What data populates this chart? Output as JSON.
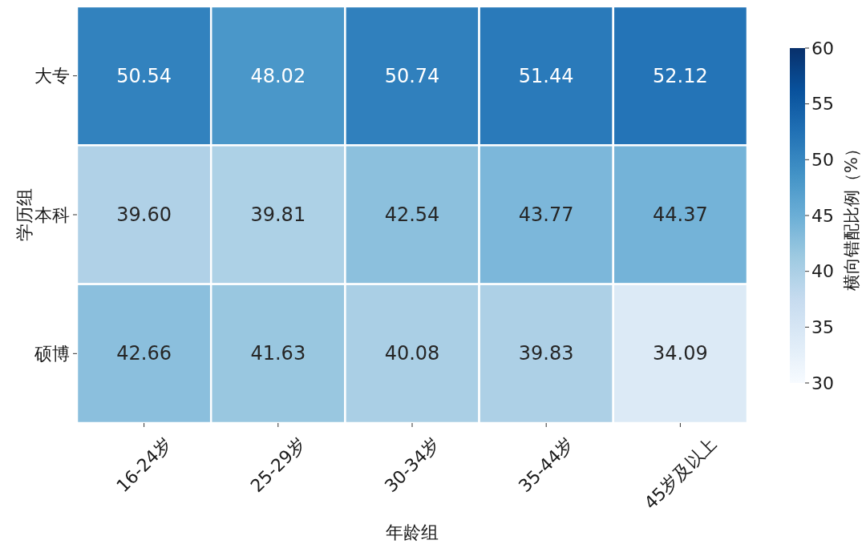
{
  "chart_data": {
    "type": "heatmap",
    "xlabel": "年龄组",
    "ylabel": "学历组",
    "clabel": "横向错配比例（%）",
    "categories": [
      "16-24岁",
      "25-29岁",
      "30-34岁",
      "35-44岁",
      "45岁及以上"
    ],
    "y_categories": [
      "大专",
      "本科",
      "硕博"
    ],
    "cells": [
      [
        50.54,
        48.02,
        50.74,
        51.44,
        52.12
      ],
      [
        39.6,
        39.81,
        42.54,
        43.77,
        44.37
      ],
      [
        42.66,
        41.63,
        40.08,
        39.83,
        34.09
      ]
    ],
    "cell_labels": [
      [
        "50.54",
        "48.02",
        "50.74",
        "51.44",
        "52.12"
      ],
      [
        "39.60",
        "39.81",
        "42.54",
        "43.77",
        "44.37"
      ],
      [
        "42.66",
        "41.63",
        "40.08",
        "39.83",
        "34.09"
      ]
    ],
    "clim": [
      30,
      60
    ],
    "cticks": [
      30,
      35,
      40,
      45,
      50,
      55,
      60
    ]
  }
}
